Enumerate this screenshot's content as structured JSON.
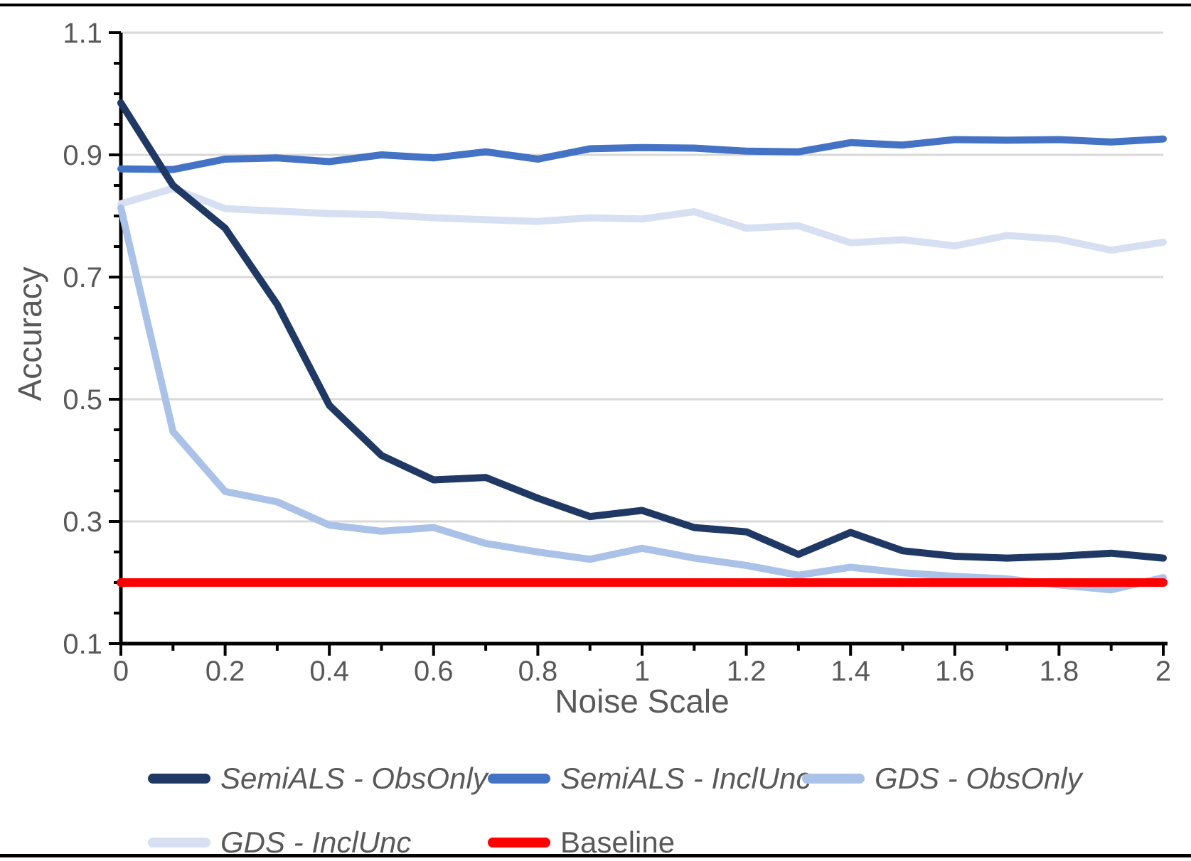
{
  "chart_data": {
    "type": "line",
    "title": "",
    "xlabel": "Noise Scale",
    "ylabel": "Accuracy",
    "xlim": [
      0,
      2
    ],
    "ylim": [
      0.1,
      1.1
    ],
    "grid": "horizontal",
    "gridline_values": [
      0.3,
      0.5,
      0.7,
      0.9,
      1.1
    ],
    "x_tick_values": [
      0,
      0.2,
      0.4,
      0.6,
      0.8,
      1,
      1.2,
      1.4,
      1.6,
      1.8,
      2
    ],
    "x_tick_labels": [
      "0",
      "0.2",
      "0.4",
      "0.6",
      "0.8",
      "1",
      "1.2",
      "1.4",
      "1.6",
      "1.8",
      "2"
    ],
    "x_minor_step": 0.1,
    "y_tick_values": [
      0.1,
      0.3,
      0.5,
      0.7,
      0.9,
      1.1
    ],
    "y_tick_labels": [
      "0.1",
      "0.3",
      "0.5",
      "0.7",
      "0.9",
      "1.1"
    ],
    "y_minor_step": 0.05,
    "legend_position": "bottom",
    "x": [
      0,
      0.1,
      0.2,
      0.3,
      0.4,
      0.5,
      0.6,
      0.7,
      0.8,
      0.9,
      1.0,
      1.1,
      1.2,
      1.3,
      1.4,
      1.5,
      1.6,
      1.7,
      1.8,
      1.9,
      2.0
    ],
    "series": [
      {
        "name": "SemiALS - ObsOnly",
        "color": "#1f3864",
        "values": [
          0.985,
          0.85,
          0.78,
          0.655,
          0.49,
          0.408,
          0.368,
          0.372,
          0.338,
          0.308,
          0.318,
          0.29,
          0.283,
          0.246,
          0.282,
          0.252,
          0.243,
          0.24,
          0.243,
          0.248,
          0.24
        ]
      },
      {
        "name": "SemiALS - InclUnc",
        "color": "#4472c4",
        "values": [
          0.877,
          0.876,
          0.893,
          0.895,
          0.889,
          0.9,
          0.895,
          0.905,
          0.893,
          0.91,
          0.912,
          0.911,
          0.906,
          0.905,
          0.92,
          0.916,
          0.925,
          0.924,
          0.925,
          0.921,
          0.926
        ]
      },
      {
        "name": "GDS - ObsOnly",
        "color": "#aac1e8",
        "values": [
          0.813,
          0.447,
          0.349,
          0.332,
          0.294,
          0.284,
          0.29,
          0.264,
          0.25,
          0.238,
          0.256,
          0.24,
          0.228,
          0.212,
          0.225,
          0.216,
          0.21,
          0.206,
          0.196,
          0.188,
          0.208
        ]
      },
      {
        "name": "GDS - InclUnc",
        "color": "#d7e0f2",
        "values": [
          0.82,
          0.845,
          0.812,
          0.808,
          0.804,
          0.802,
          0.797,
          0.794,
          0.791,
          0.797,
          0.795,
          0.807,
          0.78,
          0.784,
          0.756,
          0.761,
          0.751,
          0.768,
          0.762,
          0.744,
          0.757
        ]
      },
      {
        "name": "Baseline",
        "color": "#ff0000",
        "values": [
          0.2,
          0.2,
          0.2,
          0.2,
          0.2,
          0.2,
          0.2,
          0.2,
          0.2,
          0.2,
          0.2,
          0.2,
          0.2,
          0.2,
          0.2,
          0.2,
          0.2,
          0.2,
          0.2,
          0.2,
          0.2
        ]
      }
    ]
  },
  "styles": {
    "grid_color": "#d9d9d9",
    "axis_color": "#000000",
    "text_color": "#595959",
    "background": "#ffffff",
    "series_stroke_width": 10,
    "baseline_stroke_width": 12
  }
}
